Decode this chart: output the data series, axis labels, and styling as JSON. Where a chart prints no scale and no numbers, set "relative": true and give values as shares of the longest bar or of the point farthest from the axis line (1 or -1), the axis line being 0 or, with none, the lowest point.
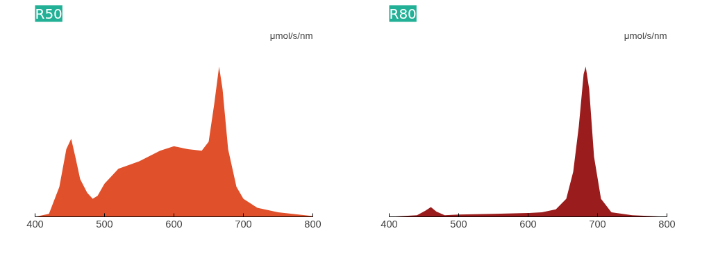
{
  "chart_data": [
    {
      "type": "area",
      "title": "R50",
      "ylabel": "μmol/s/nm",
      "relative": true,
      "grid": false,
      "xlim": [
        400,
        800
      ],
      "xticks": [
        400,
        500,
        600,
        700,
        800
      ],
      "x": [
        400,
        420,
        435,
        445,
        452,
        458,
        465,
        475,
        483,
        490,
        500,
        520,
        550,
        580,
        600,
        620,
        640,
        650,
        658,
        665,
        670,
        678,
        690,
        700,
        720,
        750,
        800
      ],
      "series": [
        {
          "color": "#e0502a",
          "values": [
            0,
            0.02,
            0.2,
            0.45,
            0.52,
            0.4,
            0.25,
            0.16,
            0.12,
            0.14,
            0.22,
            0.32,
            0.37,
            0.44,
            0.47,
            0.45,
            0.44,
            0.5,
            0.75,
            1.0,
            0.85,
            0.45,
            0.2,
            0.12,
            0.06,
            0.03,
            0.005
          ]
        }
      ]
    },
    {
      "type": "area",
      "title": "R80",
      "ylabel": "μmol/s/nm",
      "relative": true,
      "grid": false,
      "xlim": [
        400,
        800
      ],
      "xticks": [
        400,
        500,
        600,
        700,
        800
      ],
      "x": [
        400,
        440,
        452,
        460,
        468,
        480,
        500,
        550,
        600,
        620,
        640,
        655,
        665,
        673,
        680,
        683,
        688,
        695,
        705,
        720,
        750,
        800
      ],
      "series": [
        {
          "color": "#9b1c1c",
          "values": [
            0,
            0.01,
            0.04,
            0.065,
            0.035,
            0.01,
            0.015,
            0.02,
            0.025,
            0.03,
            0.05,
            0.12,
            0.3,
            0.6,
            0.95,
            1.0,
            0.85,
            0.4,
            0.12,
            0.03,
            0.01,
            0
          ]
        }
      ]
    }
  ]
}
